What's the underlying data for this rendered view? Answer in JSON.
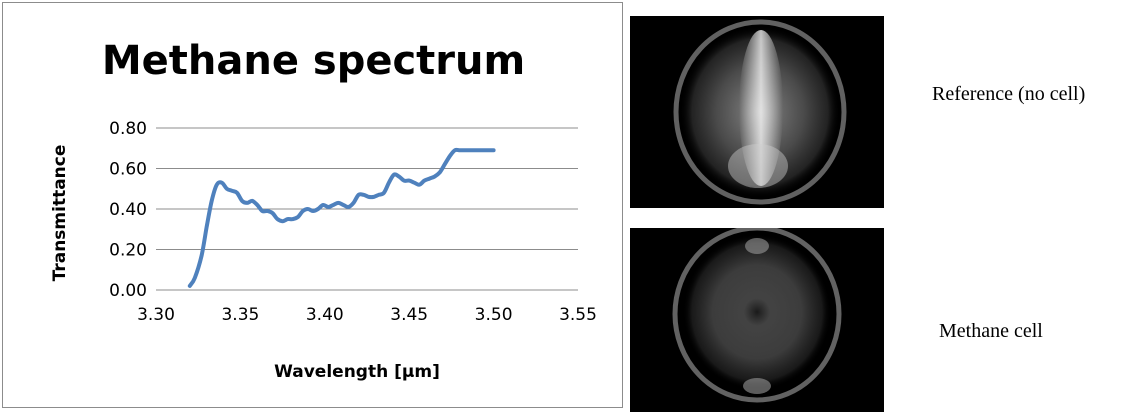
{
  "images": {
    "reference_label": "Reference (no cell)",
    "methane_label": "Methane cell",
    "glow": "#d9d9d9"
  },
  "chart_data": {
    "type": "line",
    "title": "Methane spectrum",
    "xlabel": "Wavelength [µm]",
    "ylabel": "Transmittance",
    "xlim": [
      3.3,
      3.55
    ],
    "ylim": [
      0.0,
      0.8
    ],
    "xticks": [
      "3.30",
      "3.35",
      "3.40",
      "3.45",
      "3.50",
      "3.55"
    ],
    "yticks": [
      "0.00",
      "0.20",
      "0.40",
      "0.60",
      "0.80"
    ],
    "grid": true,
    "line_color": "#4f81bd",
    "x": [
      3.32,
      3.323,
      3.327,
      3.33,
      3.333,
      3.336,
      3.339,
      3.342,
      3.345,
      3.348,
      3.351,
      3.354,
      3.357,
      3.36,
      3.363,
      3.366,
      3.369,
      3.372,
      3.375,
      3.378,
      3.381,
      3.384,
      3.387,
      3.39,
      3.393,
      3.396,
      3.399,
      3.402,
      3.405,
      3.408,
      3.411,
      3.414,
      3.417,
      3.42,
      3.423,
      3.426,
      3.429,
      3.432,
      3.435,
      3.438,
      3.441,
      3.444,
      3.447,
      3.45,
      3.453,
      3.456,
      3.459,
      3.462,
      3.465,
      3.468,
      3.471,
      3.474,
      3.477,
      3.48,
      3.483,
      3.486,
      3.489,
      3.492,
      3.495,
      3.498,
      3.5
    ],
    "y": [
      0.02,
      0.06,
      0.17,
      0.31,
      0.44,
      0.52,
      0.53,
      0.5,
      0.49,
      0.48,
      0.44,
      0.43,
      0.44,
      0.42,
      0.39,
      0.39,
      0.38,
      0.35,
      0.34,
      0.35,
      0.35,
      0.36,
      0.39,
      0.4,
      0.39,
      0.4,
      0.42,
      0.41,
      0.42,
      0.43,
      0.42,
      0.41,
      0.43,
      0.47,
      0.47,
      0.46,
      0.46,
      0.47,
      0.48,
      0.53,
      0.57,
      0.56,
      0.54,
      0.54,
      0.53,
      0.52,
      0.54,
      0.55,
      0.56,
      0.58,
      0.62,
      0.66,
      0.69,
      0.69,
      0.69,
      0.69,
      0.69,
      0.69,
      0.69,
      0.69,
      0.69
    ]
  }
}
